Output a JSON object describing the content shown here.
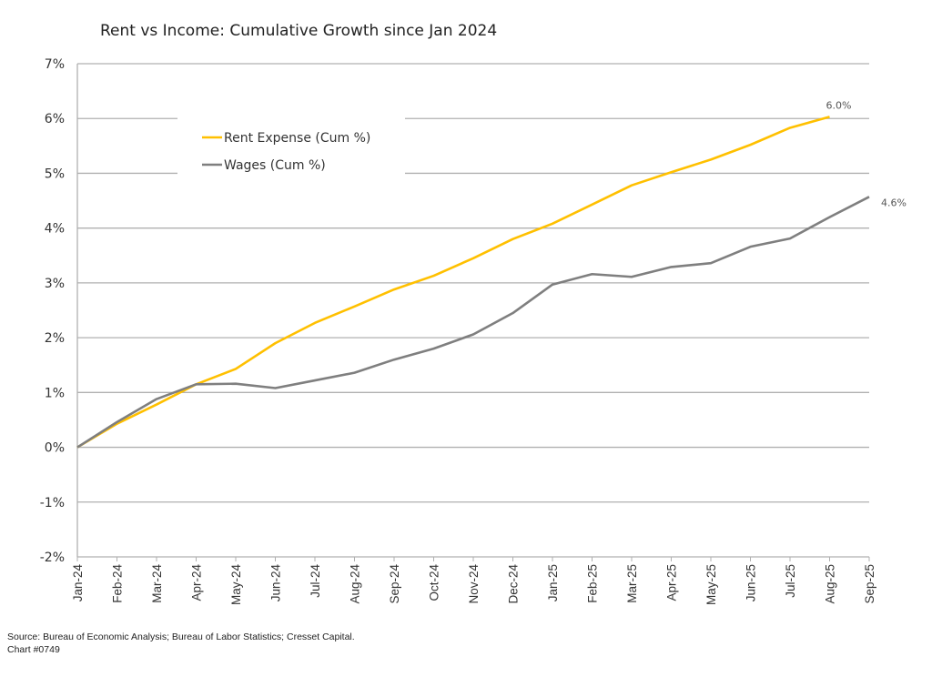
{
  "chart_data": {
    "type": "line",
    "title": "Rent vs Income: Cumulative Growth since Jan 2024",
    "xlabel": "",
    "ylabel": "",
    "ylim": [
      -2,
      7
    ],
    "yticks": [
      "-2%",
      "-1%",
      "0%",
      "1%",
      "2%",
      "3%",
      "4%",
      "5%",
      "6%",
      "7%"
    ],
    "grid": true,
    "legend_placement": "top-left",
    "categories": [
      "Jan-24",
      "Feb-24",
      "Mar-24",
      "Apr-24",
      "May-24",
      "Jun-24",
      "Jul-24",
      "Aug-24",
      "Sep-24",
      "Oct-24",
      "Nov-24",
      "Dec-24",
      "Jan-25",
      "Feb-25",
      "Mar-25",
      "Apr-25",
      "May-25",
      "Jun-25",
      "Jul-25",
      "Aug-25",
      "Sep-25"
    ],
    "series": [
      {
        "name": "Rent Expense (Cum %)",
        "color": "#FFC000",
        "values": [
          0,
          0.43,
          0.78,
          1.15,
          1.43,
          1.9,
          2.27,
          2.57,
          2.88,
          3.13,
          3.45,
          3.8,
          4.08,
          4.43,
          4.78,
          5.02,
          5.25,
          5.52,
          5.83,
          6.03,
          null
        ],
        "end_label": "6.0%"
      },
      {
        "name": "Wages (Cum %)",
        "color": "#7F7F7F",
        "values": [
          0,
          0.46,
          0.88,
          1.15,
          1.16,
          1.08,
          1.22,
          1.36,
          1.6,
          1.8,
          2.06,
          2.45,
          2.97,
          3.16,
          3.11,
          3.29,
          3.36,
          3.66,
          3.81,
          4.2,
          4.57
        ],
        "end_label": "4.6%"
      }
    ]
  },
  "footer": {
    "source": "Source: Bureau of Economic Analysis;  Bureau of Labor Statistics; Cresset Capital.",
    "chart_id": "Chart #0749"
  }
}
